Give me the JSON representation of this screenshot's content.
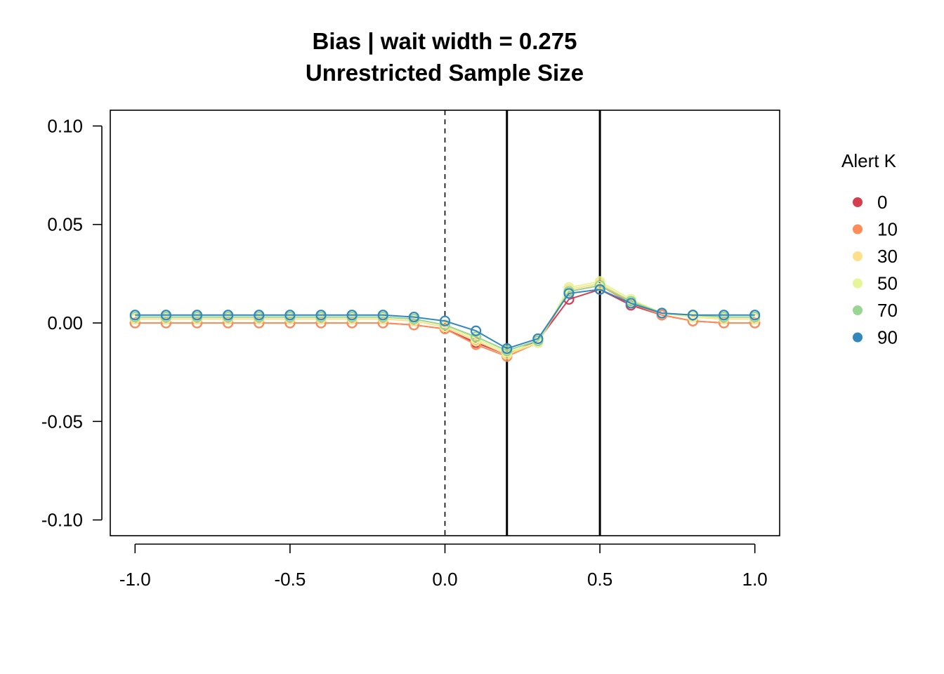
{
  "chart_data": {
    "type": "line",
    "title": "Bias | wait width = 0.275",
    "subtitle": "Unrestricted Sample Size",
    "xlabel": "",
    "ylabel": "",
    "xlim": [
      -1.08,
      1.08
    ],
    "ylim": [
      -0.108,
      0.108
    ],
    "x_ticks": [
      -1.0,
      -0.5,
      0.0,
      0.5,
      1.0
    ],
    "x_tick_labels": [
      "-1.0",
      "-0.5",
      "0.0",
      "0.5",
      "1.0"
    ],
    "y_ticks": [
      0.1,
      0.05,
      0.0,
      -0.05,
      -0.1
    ],
    "y_tick_labels": [
      "0.10",
      "0.05",
      "0.00",
      "-0.05",
      "-0.10"
    ],
    "grid": false,
    "legend_position": "right",
    "legend_title": "Alert K",
    "reference_lines": {
      "dashed_vertical": [
        0.0
      ],
      "solid_vertical": [
        0.2,
        0.5
      ]
    },
    "x": [
      -1.0,
      -0.9,
      -0.8,
      -0.7,
      -0.6,
      -0.5,
      -0.4,
      -0.3,
      -0.2,
      -0.1,
      0.0,
      0.1,
      0.2,
      0.3,
      0.4,
      0.5,
      0.6,
      0.7,
      0.8,
      0.9,
      1.0
    ],
    "series": [
      {
        "name": "0",
        "color": "#D53E4F",
        "values": [
          0.0,
          0.0,
          0.0,
          0.0,
          0.0,
          0.0,
          0.0,
          0.0,
          0.0,
          -0.001,
          -0.003,
          -0.01,
          -0.016,
          -0.009,
          0.012,
          0.017,
          0.009,
          0.004,
          0.001,
          0.0,
          0.0
        ]
      },
      {
        "name": "10",
        "color": "#FC8D59",
        "values": [
          0.0,
          0.0,
          0.0,
          0.0,
          0.0,
          0.0,
          0.0,
          0.0,
          0.0,
          -0.001,
          -0.003,
          -0.011,
          -0.017,
          -0.01,
          0.016,
          0.019,
          0.01,
          0.004,
          0.001,
          0.0,
          0.0
        ]
      },
      {
        "name": "30",
        "color": "#FEE08B",
        "values": [
          0.002,
          0.002,
          0.002,
          0.002,
          0.002,
          0.002,
          0.002,
          0.002,
          0.002,
          0.001,
          -0.002,
          -0.009,
          -0.016,
          -0.01,
          0.017,
          0.02,
          0.011,
          0.005,
          0.003,
          0.002,
          0.002
        ]
      },
      {
        "name": "50",
        "color": "#E6F598",
        "values": [
          0.003,
          0.003,
          0.003,
          0.003,
          0.003,
          0.003,
          0.003,
          0.003,
          0.003,
          0.002,
          -0.001,
          -0.008,
          -0.015,
          -0.01,
          0.018,
          0.021,
          0.012,
          0.005,
          0.003,
          0.003,
          0.003
        ]
      },
      {
        "name": "70",
        "color": "#99D594",
        "values": [
          0.003,
          0.003,
          0.003,
          0.003,
          0.003,
          0.003,
          0.003,
          0.003,
          0.003,
          0.002,
          -0.001,
          -0.007,
          -0.014,
          -0.009,
          0.016,
          0.019,
          0.011,
          0.005,
          0.004,
          0.003,
          0.003
        ]
      },
      {
        "name": "90",
        "color": "#3288BD",
        "values": [
          0.004,
          0.004,
          0.004,
          0.004,
          0.004,
          0.004,
          0.004,
          0.004,
          0.004,
          0.003,
          0.001,
          -0.004,
          -0.013,
          -0.008,
          0.015,
          0.017,
          0.01,
          0.005,
          0.004,
          0.004,
          0.004
        ]
      }
    ]
  }
}
